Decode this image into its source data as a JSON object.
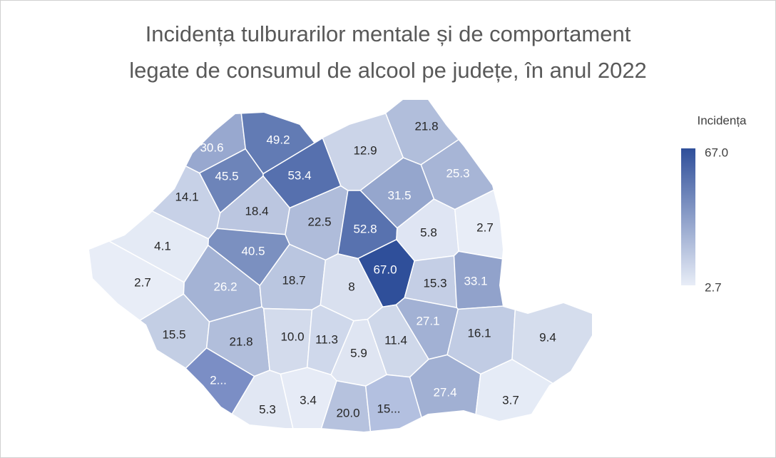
{
  "map": {
    "title": [
      "Incidența tulburarilor mentale și de comportament",
      "legate de consumul de alcool pe județe, în anul 2022"
    ],
    "legend": {
      "title": "Incidența",
      "max": {
        "value": 67,
        "label": "67.0"
      },
      "min": 2.7,
      "color_min": "#e8edf7",
      "color_max": "#2f4f9a"
    },
    "regions": [
      30.6,
      49.2,
      21.8,
      12.9,
      45.5,
      53.4,
      25.3,
      14.1,
      18.4,
      31.5,
      22.5,
      52.8,
      5.8,
      2.7,
      4.1,
      40.5,
      {
        "value": 67,
        "label": "67.0"
      },
      2.7,
      26.2,
      18.7,
      8,
      15.3,
      33.1,
      27.1,
      15.5,
      21.8,
      {
        "value": 10,
        "label": "10.0"
      },
      11.3,
      5.9,
      11.4,
      16.1,
      9.4,
      {
        "label": "2...",
        "color": "#7b8ec5"
      },
      5.3,
      3.4,
      {
        "value": 20,
        "label": "20.0"
      },
      {
        "label": "15...",
        "color": "#b3c0e0"
      },
      27.4,
      3.7
    ]
  }
}
